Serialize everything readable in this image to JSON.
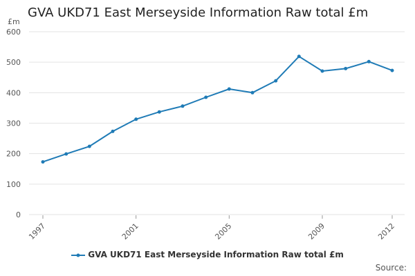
{
  "chart_data": {
    "type": "line",
    "title": "GVA UKD71 East Merseyside Information Raw total £m",
    "ylabel": "£m",
    "xlabel": "",
    "x": [
      1997,
      1998,
      1999,
      2000,
      2001,
      2002,
      2003,
      2004,
      2005,
      2006,
      2007,
      2008,
      2009,
      2010,
      2011,
      2012
    ],
    "xtick_labels": [
      "1997",
      "2001",
      "2005",
      "2009",
      "2012"
    ],
    "xticks": [
      1997,
      2001,
      2005,
      2009,
      2012
    ],
    "yticks": [
      0,
      100,
      200,
      300,
      400,
      500,
      600
    ],
    "ylim": [
      0,
      600
    ],
    "xlim": [
      1997,
      2012
    ],
    "grid": true,
    "legend_position": "bottom",
    "series": [
      {
        "name": "GVA UKD71 East Merseyside Information Raw total £m",
        "color": "#1f7bb6",
        "values": [
          173,
          199,
          224,
          273,
          313,
          337,
          356,
          385,
          412,
          400,
          439,
          519,
          471,
          479,
          502,
          473
        ]
      }
    ]
  },
  "source_label": "Source:"
}
